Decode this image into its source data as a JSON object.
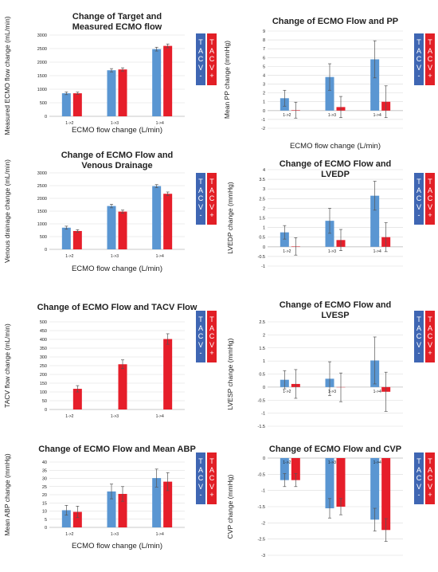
{
  "colors": {
    "tacv_minus": "#5a96d2",
    "tacv_plus": "#e61e2a",
    "legend_minus": "#3f66b3",
    "legend_plus": "#e21f26",
    "grid": "#d9d9d9",
    "axis": "#bfbfbf",
    "error_bar": "#555555",
    "text": "#222222"
  },
  "legend": {
    "minus_letters": [
      "T",
      "A",
      "C",
      "V",
      "-"
    ],
    "plus_letters": [
      "T",
      "A",
      "C",
      "V",
      "+"
    ]
  },
  "chart_data": [
    {
      "id": "target-measured",
      "type": "bar",
      "title": [
        "Change of Target and",
        "Measured ECMO flow"
      ],
      "xlabel": "ECMO flow change (L/min)",
      "ylabel": "Measured ECMO flow change (mL/min)",
      "ylim": [
        0,
        3000
      ],
      "yticks": [
        0,
        500,
        1000,
        1500,
        2000,
        2500,
        3000
      ],
      "grid": true,
      "category_labels_position": "below-axis",
      "categories": [
        "1->2",
        "1->3",
        "1->4"
      ],
      "series": [
        {
          "name": "TACV -",
          "values": [
            850,
            1700,
            2480
          ],
          "errors": [
            50,
            60,
            70
          ]
        },
        {
          "name": "TACV +",
          "values": [
            850,
            1730,
            2600
          ],
          "errors": [
            45,
            60,
            70
          ]
        }
      ]
    },
    {
      "id": "pp",
      "type": "bar",
      "title": [
        "Change of ECMO Flow and PP"
      ],
      "xlabel": "ECMO flow change (L/min)",
      "ylabel": "Mean PP change (mmHg)",
      "ylim": [
        -2,
        9
      ],
      "yticks": [
        -2,
        -1,
        0,
        1,
        2,
        3,
        4,
        5,
        6,
        7,
        8,
        9
      ],
      "grid": true,
      "category_labels_position": "at-zero",
      "categories": [
        "1->2",
        "1->3",
        "1->4"
      ],
      "series": [
        {
          "name": "TACV -",
          "values": [
            1.4,
            3.8,
            5.8
          ],
          "errors": [
            0.9,
            1.5,
            2.1
          ]
        },
        {
          "name": "TACV +",
          "values": [
            0.05,
            0.4,
            1.0
          ],
          "errors": [
            0.9,
            1.2,
            1.8
          ]
        }
      ]
    },
    {
      "id": "venous",
      "type": "bar",
      "title": [
        "Change of ECMO Flow and",
        "Venous Drainage"
      ],
      "xlabel": "ECMO flow change (L/min)",
      "ylabel": "Venous drainage change (mL/min)",
      "ylim": [
        0,
        3000
      ],
      "yticks": [
        0,
        500,
        1000,
        1500,
        2000,
        2500,
        3000
      ],
      "grid": true,
      "category_labels_position": "below-axis",
      "categories": [
        "1->2",
        "1->3",
        "1->4"
      ],
      "series": [
        {
          "name": "TACV -",
          "values": [
            850,
            1700,
            2480
          ],
          "errors": [
            60,
            70,
            60
          ]
        },
        {
          "name": "TACV +",
          "values": [
            720,
            1480,
            2180
          ],
          "errors": [
            50,
            60,
            70
          ]
        }
      ]
    },
    {
      "id": "lvedp",
      "type": "bar",
      "title": [
        "Change of ECMO Flow and",
        "LVEDP"
      ],
      "xlabel": "",
      "ylabel": "LVEDP change (mmHg)",
      "ylim": [
        -1,
        4
      ],
      "yticks": [
        -1,
        -0.5,
        0,
        0.5,
        1,
        1.5,
        2,
        2.5,
        3,
        3.5,
        4
      ],
      "grid": true,
      "category_labels_position": "at-zero",
      "categories": [
        "1->2",
        "1->3",
        "1->4"
      ],
      "series": [
        {
          "name": "TACV -",
          "values": [
            0.75,
            1.35,
            2.65
          ],
          "errors": [
            0.35,
            0.65,
            0.75
          ]
        },
        {
          "name": "TACV +",
          "values": [
            0.02,
            0.35,
            0.5
          ],
          "errors": [
            0.45,
            0.55,
            0.75
          ]
        }
      ]
    },
    {
      "id": "tacv-flow",
      "type": "bar",
      "title": [
        "Change of ECMO Flow and TACV Flow"
      ],
      "xlabel": "",
      "ylabel": "TACV flow change (mL/min)",
      "ylim": [
        0,
        500
      ],
      "yticks": [
        0,
        50,
        100,
        150,
        200,
        250,
        300,
        350,
        400,
        450,
        500
      ],
      "grid": true,
      "category_labels_position": "below-axis",
      "categories": [
        "1->2",
        "1->3",
        "1->4"
      ],
      "series": [
        {
          "name": "TACV -",
          "values": [
            0,
            0,
            0
          ],
          "errors": [
            0,
            0,
            0
          ]
        },
        {
          "name": "TACV +",
          "values": [
            118,
            258,
            402
          ],
          "errors": [
            18,
            25,
            30
          ]
        }
      ]
    },
    {
      "id": "lvesp",
      "type": "bar",
      "title": [
        "Change of ECMO Flow and",
        "LVESP"
      ],
      "xlabel": "",
      "ylabel": "LVESP change (mmHg)",
      "ylim": [
        -1.5,
        2.5
      ],
      "yticks": [
        -1.5,
        -1,
        -0.5,
        0,
        0.5,
        1,
        1.5,
        2,
        2.5
      ],
      "grid": true,
      "category_labels_position": "at-zero",
      "categories": [
        "1->2",
        "1->3",
        "1->4"
      ],
      "series": [
        {
          "name": "TACV -",
          "values": [
            0.28,
            0.32,
            1.02
          ],
          "errors": [
            0.35,
            0.65,
            0.9
          ]
        },
        {
          "name": "TACV +",
          "values": [
            0.12,
            -0.01,
            -0.18
          ],
          "errors": [
            0.55,
            0.55,
            0.75
          ]
        }
      ]
    },
    {
      "id": "abp",
      "type": "bar",
      "title": [
        "Change of ECMO Flow and Mean ABP"
      ],
      "xlabel": "ECMO flow change (L/min)",
      "ylabel": "Mean ABP change (mmHg)",
      "ylim": [
        0,
        40
      ],
      "yticks": [
        0,
        5,
        10,
        15,
        20,
        25,
        30,
        35,
        40
      ],
      "grid": true,
      "category_labels_position": "below-axis",
      "categories": [
        "1->2",
        "1->3",
        "1->4"
      ],
      "series": [
        {
          "name": "TACV -",
          "values": [
            10.5,
            22.0,
            30.2
          ],
          "errors": [
            3.0,
            4.5,
            5.5
          ]
        },
        {
          "name": "TACV +",
          "values": [
            9.5,
            20.5,
            28.0
          ],
          "errors": [
            3.5,
            4.5,
            5.5
          ]
        }
      ]
    },
    {
      "id": "cvp",
      "type": "bar",
      "title": [
        "Change of ECMO Flow and CVP"
      ],
      "xlabel": "",
      "ylabel": "CVP change (mmHg)",
      "ylim": [
        -3,
        0
      ],
      "yticks": [
        -3,
        -2.5,
        -2,
        -1.5,
        -1,
        -0.5,
        0
      ],
      "grid": true,
      "category_labels_position": "at-zero",
      "categories": [
        "1->2",
        "1->3",
        "1->4"
      ],
      "series": [
        {
          "name": "TACV -",
          "values": [
            -0.68,
            -1.55,
            -1.9
          ],
          "errors": [
            0.2,
            0.3,
            0.35
          ]
        },
        {
          "name": "TACV +",
          "values": [
            -0.68,
            -1.5,
            -2.22
          ],
          "errors": [
            0.2,
            0.25,
            0.35
          ]
        }
      ]
    }
  ]
}
